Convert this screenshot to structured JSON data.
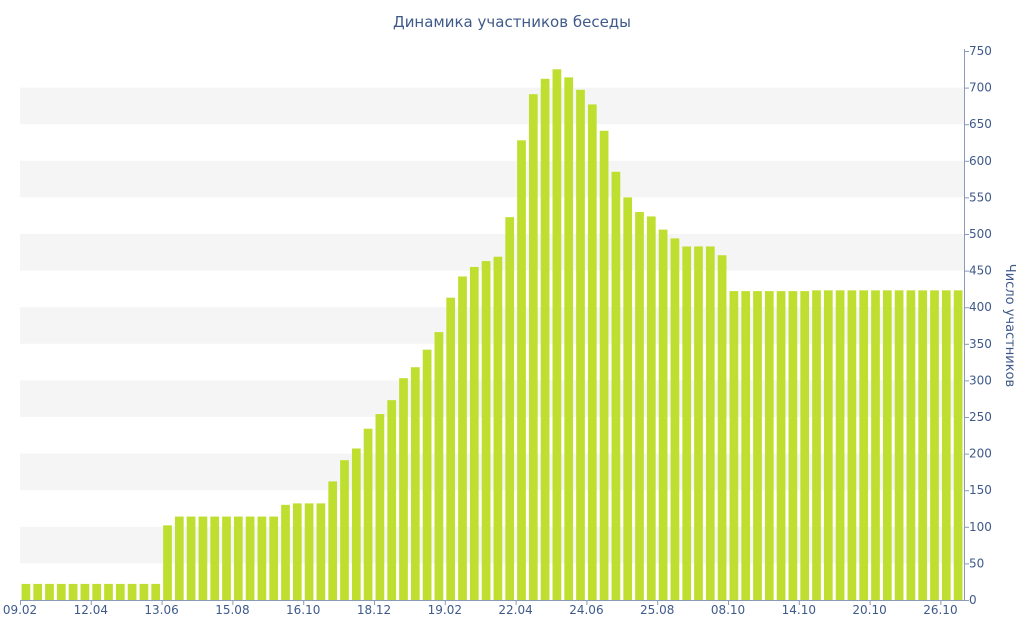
{
  "chart_data": {
    "type": "bar",
    "title": "Динамика участников беседы",
    "xlabel": "",
    "ylabel": "Число участников",
    "ylim": [
      0,
      750
    ],
    "yticks": [
      0,
      50,
      100,
      150,
      200,
      250,
      300,
      350,
      400,
      450,
      500,
      550,
      600,
      650,
      700,
      750
    ],
    "y_axis_side": "right",
    "grid": "alternating horizontal bands",
    "bar_color": "#bedf2f",
    "band_color": "#f5f5f5",
    "text_color": "#3f5a8a",
    "x_tick_labels": [
      "09.02",
      "12.04",
      "13.06",
      "15.08",
      "16.10",
      "18.12",
      "19.02",
      "22.04",
      "24.06",
      "25.08",
      "08.10",
      "14.10",
      "20.10",
      "26.10"
    ],
    "x_tick_bar_index": [
      0,
      6,
      12,
      18,
      24,
      30,
      36,
      42,
      48,
      54,
      60,
      66,
      72,
      78
    ],
    "values": [
      22,
      22,
      22,
      22,
      22,
      22,
      22,
      22,
      22,
      22,
      22,
      22,
      102,
      114,
      114,
      114,
      114,
      114,
      114,
      114,
      114,
      114,
      130,
      132,
      132,
      132,
      162,
      191,
      207,
      234,
      254,
      273,
      303,
      318,
      342,
      366,
      413,
      442,
      455,
      463,
      469,
      523,
      628,
      691,
      712,
      725,
      714,
      697,
      677,
      641,
      585,
      550,
      530,
      524,
      506,
      494,
      483,
      483,
      483,
      471,
      422,
      422,
      422,
      422,
      422,
      422,
      422,
      423,
      423,
      423,
      423,
      423,
      423,
      423,
      423,
      423,
      423,
      423,
      423,
      423
    ]
  }
}
